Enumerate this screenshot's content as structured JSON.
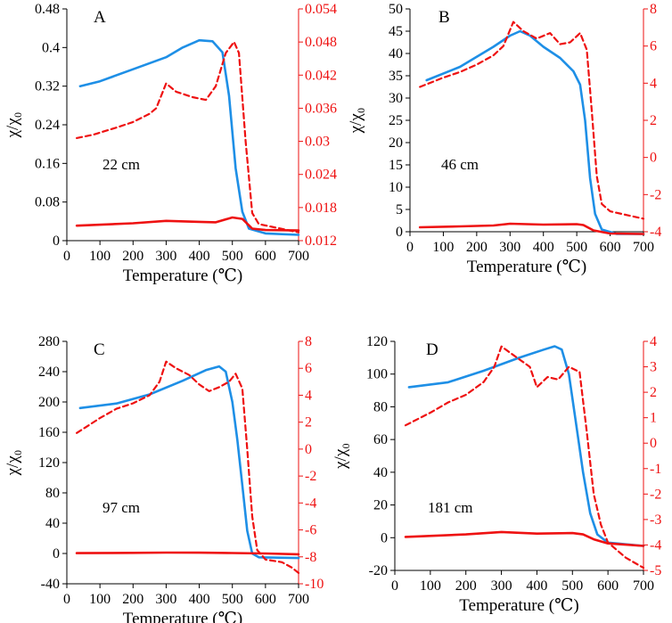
{
  "colors": {
    "blue": "#1e8fe6",
    "red": "#ee1111",
    "axis": "#000000"
  },
  "chart_data": [
    {
      "type": "line",
      "panel": "A",
      "depth": "22 cm",
      "xlabel": "Temperature (℃)",
      "ylabel": "χ/χ₀",
      "x_ticks": [
        "0",
        "100",
        "200",
        "300",
        "400",
        "500",
        "600",
        "700"
      ],
      "xlim": [
        0,
        700
      ],
      "left_ticks": [
        "0",
        "0.08",
        "0.16",
        "0.24",
        "0.32",
        "0.4",
        "0.48"
      ],
      "left_lim": [
        0,
        0.48
      ],
      "right_ticks": [
        "0.012",
        "0.018",
        "0.024",
        "0.03",
        "0.036",
        "0.042",
        "0.048",
        "0.054"
      ],
      "right_lim": [
        0.012,
        0.054
      ],
      "series": [
        {
          "name": "heating χ/χ₀ (blue)",
          "axis": "left",
          "style": "solid",
          "color": "blue",
          "points": [
            [
              40,
              0.32
            ],
            [
              100,
              0.33
            ],
            [
              200,
              0.355
            ],
            [
              300,
              0.38
            ],
            [
              350,
              0.4
            ],
            [
              400,
              0.415
            ],
            [
              440,
              0.413
            ],
            [
              470,
              0.39
            ],
            [
              490,
              0.3
            ],
            [
              510,
              0.15
            ],
            [
              530,
              0.06
            ],
            [
              550,
              0.025
            ],
            [
              600,
              0.015
            ],
            [
              700,
              0.012
            ]
          ]
        },
        {
          "name": "cooling χ/χ₀ (red)",
          "axis": "left",
          "style": "solid",
          "color": "red",
          "points": [
            [
              30,
              0.031
            ],
            [
              200,
              0.036
            ],
            [
              300,
              0.041
            ],
            [
              400,
              0.039
            ],
            [
              450,
              0.038
            ],
            [
              500,
              0.048
            ],
            [
              530,
              0.045
            ],
            [
              560,
              0.025
            ],
            [
              600,
              0.022
            ],
            [
              700,
              0.021
            ]
          ]
        },
        {
          "name": "dM/dT (red dashed)",
          "axis": "right",
          "style": "dashed",
          "color": "red",
          "points": [
            [
              30,
              0.0306
            ],
            [
              80,
              0.0312
            ],
            [
              150,
              0.0325
            ],
            [
              200,
              0.0335
            ],
            [
              250,
              0.035
            ],
            [
              270,
              0.036
            ],
            [
              300,
              0.0405
            ],
            [
              330,
              0.039
            ],
            [
              380,
              0.038
            ],
            [
              420,
              0.0375
            ],
            [
              450,
              0.04
            ],
            [
              480,
              0.046
            ],
            [
              505,
              0.048
            ],
            [
              520,
              0.046
            ],
            [
              540,
              0.03
            ],
            [
              560,
              0.017
            ],
            [
              580,
              0.015
            ],
            [
              620,
              0.0145
            ],
            [
              660,
              0.014
            ],
            [
              700,
              0.0135
            ]
          ]
        }
      ]
    },
    {
      "type": "line",
      "panel": "B",
      "depth": "46 cm",
      "xlabel": "Temperature (℃)",
      "ylabel": "χ/χ₀",
      "x_ticks": [
        "0",
        "100",
        "200",
        "300",
        "400",
        "500",
        "600",
        "700"
      ],
      "xlim": [
        0,
        700
      ],
      "left_ticks": [
        "0",
        "5",
        "10",
        "15",
        "20",
        "25",
        "30",
        "35",
        "40",
        "45",
        "50"
      ],
      "left_lim": [
        0,
        50
      ],
      "right_ticks": [
        "-4",
        "-2",
        "0",
        "2",
        "4",
        "6",
        "8"
      ],
      "right_lim": [
        -4,
        8
      ],
      "series": [
        {
          "name": "heating χ/χ₀ (blue)",
          "axis": "left",
          "style": "solid",
          "color": "blue",
          "points": [
            [
              50,
              34
            ],
            [
              150,
              37
            ],
            [
              250,
              41.5
            ],
            [
              300,
              44
            ],
            [
              330,
              45
            ],
            [
              360,
              44
            ],
            [
              400,
              41.5
            ],
            [
              450,
              39
            ],
            [
              490,
              36
            ],
            [
              510,
              33
            ],
            [
              525,
              25
            ],
            [
              540,
              12
            ],
            [
              555,
              4
            ],
            [
              575,
              0.5
            ],
            [
              620,
              -0.5
            ],
            [
              700,
              -0.5
            ]
          ]
        },
        {
          "name": "cooling χ/χ₀ (red)",
          "axis": "left",
          "style": "solid",
          "color": "red",
          "points": [
            [
              30,
              1
            ],
            [
              150,
              1.2
            ],
            [
              250,
              1.4
            ],
            [
              300,
              1.8
            ],
            [
              400,
              1.6
            ],
            [
              500,
              1.7
            ],
            [
              520,
              1.5
            ],
            [
              550,
              0.3
            ],
            [
              600,
              -0.4
            ],
            [
              700,
              -0.5
            ]
          ]
        },
        {
          "name": "dM/dT (red dashed)",
          "axis": "right",
          "style": "dashed",
          "color": "right",
          "points": [
            [
              30,
              3.8
            ],
            [
              100,
              4.3
            ],
            [
              150,
              4.6
            ],
            [
              200,
              5
            ],
            [
              250,
              5.5
            ],
            [
              280,
              6
            ],
            [
              310,
              7.3
            ],
            [
              340,
              6.8
            ],
            [
              380,
              6.4
            ],
            [
              420,
              6.7
            ],
            [
              450,
              6.1
            ],
            [
              480,
              6.2
            ],
            [
              510,
              6.7
            ],
            [
              530,
              5.8
            ],
            [
              545,
              2.5
            ],
            [
              560,
              -1
            ],
            [
              575,
              -2.5
            ],
            [
              600,
              -2.9
            ],
            [
              650,
              -3.1
            ],
            [
              700,
              -3.3
            ]
          ]
        }
      ]
    },
    {
      "type": "line",
      "panel": "C",
      "depth": "97 cm",
      "xlabel": "Temperature (℃)",
      "ylabel": "χ/χ₀",
      "x_ticks": [
        "0",
        "100",
        "200",
        "300",
        "400",
        "500",
        "600",
        "700"
      ],
      "xlim": [
        0,
        700
      ],
      "left_ticks": [
        "-40",
        "0",
        "40",
        "80",
        "120",
        "160",
        "200",
        "240",
        "280"
      ],
      "left_lim": [
        -40,
        280
      ],
      "right_ticks": [
        "-10",
        "-8",
        "-6",
        "-4",
        "-2",
        "0",
        "2",
        "4",
        "6",
        "8"
      ],
      "right_lim": [
        -10,
        8
      ],
      "series": [
        {
          "name": "heating χ/χ₀ (blue)",
          "axis": "left",
          "style": "solid",
          "color": "blue",
          "points": [
            [
              40,
              192
            ],
            [
              150,
              198
            ],
            [
              250,
              210
            ],
            [
              350,
              228
            ],
            [
              420,
              242
            ],
            [
              460,
              247
            ],
            [
              480,
              240
            ],
            [
              500,
              200
            ],
            [
              515,
              150
            ],
            [
              530,
              90
            ],
            [
              545,
              30
            ],
            [
              560,
              0
            ],
            [
              580,
              -5
            ],
            [
              700,
              -6
            ]
          ]
        },
        {
          "name": "cooling χ/χ₀ (red)",
          "axis": "left",
          "style": "solid",
          "color": "red",
          "points": [
            [
              30,
              0.5
            ],
            [
              200,
              0.8
            ],
            [
              300,
              1.2
            ],
            [
              400,
              1
            ],
            [
              500,
              0.6
            ],
            [
              600,
              0
            ],
            [
              700,
              -1
            ]
          ]
        },
        {
          "name": "dM/dT (red dashed)",
          "axis": "right",
          "style": "dashed",
          "color": "red",
          "points": [
            [
              30,
              1.2
            ],
            [
              100,
              2.3
            ],
            [
              150,
              3
            ],
            [
              200,
              3.4
            ],
            [
              250,
              4
            ],
            [
              280,
              5
            ],
            [
              300,
              6.5
            ],
            [
              330,
              6
            ],
            [
              370,
              5.5
            ],
            [
              400,
              4.8
            ],
            [
              430,
              4.3
            ],
            [
              460,
              4.6
            ],
            [
              490,
              5
            ],
            [
              510,
              5.6
            ],
            [
              530,
              4.5
            ],
            [
              545,
              0
            ],
            [
              560,
              -5
            ],
            [
              575,
              -7.5
            ],
            [
              600,
              -8.2
            ],
            [
              650,
              -8.4
            ],
            [
              680,
              -8.8
            ],
            [
              700,
              -9.2
            ]
          ]
        }
      ]
    },
    {
      "type": "line",
      "panel": "D",
      "depth": "181 cm",
      "xlabel": "Temperature (℃)",
      "ylabel": "χ/χ₀",
      "x_ticks": [
        "0",
        "100",
        "200",
        "300",
        "400",
        "500",
        "600",
        "700"
      ],
      "xlim": [
        0,
        700
      ],
      "left_ticks": [
        "-20",
        "0",
        "20",
        "40",
        "60",
        "80",
        "100",
        "120"
      ],
      "left_lim": [
        -20,
        120
      ],
      "right_ticks": [
        "-5",
        "-4",
        "-3",
        "-2",
        "-1",
        "0",
        "1",
        "2",
        "3",
        "4"
      ],
      "right_lim": [
        -5,
        4
      ],
      "series": [
        {
          "name": "heating χ/χ₀ (blue)",
          "axis": "left",
          "style": "solid",
          "color": "blue",
          "points": [
            [
              40,
              92
            ],
            [
              150,
              95
            ],
            [
              250,
              102
            ],
            [
              350,
              110
            ],
            [
              420,
              115
            ],
            [
              450,
              117
            ],
            [
              470,
              115
            ],
            [
              490,
              100
            ],
            [
              510,
              70
            ],
            [
              530,
              40
            ],
            [
              550,
              15
            ],
            [
              570,
              2
            ],
            [
              600,
              -3
            ],
            [
              700,
              -5
            ]
          ]
        },
        {
          "name": "cooling χ/χ₀ (red)",
          "axis": "left",
          "style": "solid",
          "color": "red",
          "points": [
            [
              30,
              0.5
            ],
            [
              200,
              2
            ],
            [
              300,
              3.5
            ],
            [
              400,
              2.5
            ],
            [
              500,
              2.8
            ],
            [
              530,
              2
            ],
            [
              560,
              -1
            ],
            [
              600,
              -3.5
            ],
            [
              700,
              -5
            ]
          ]
        },
        {
          "name": "dM/dT (red dashed)",
          "axis": "right",
          "style": "dashed",
          "color": "red",
          "points": [
            [
              30,
              0.7
            ],
            [
              100,
              1.2
            ],
            [
              150,
              1.6
            ],
            [
              200,
              1.9
            ],
            [
              250,
              2.4
            ],
            [
              280,
              3
            ],
            [
              300,
              3.8
            ],
            [
              330,
              3.5
            ],
            [
              380,
              3
            ],
            [
              400,
              2.2
            ],
            [
              430,
              2.6
            ],
            [
              460,
              2.5
            ],
            [
              490,
              3
            ],
            [
              520,
              2.8
            ],
            [
              540,
              0.5
            ],
            [
              560,
              -2
            ],
            [
              580,
              -3.2
            ],
            [
              600,
              -3.9
            ],
            [
              650,
              -4.5
            ],
            [
              700,
              -4.9
            ]
          ]
        }
      ]
    }
  ]
}
